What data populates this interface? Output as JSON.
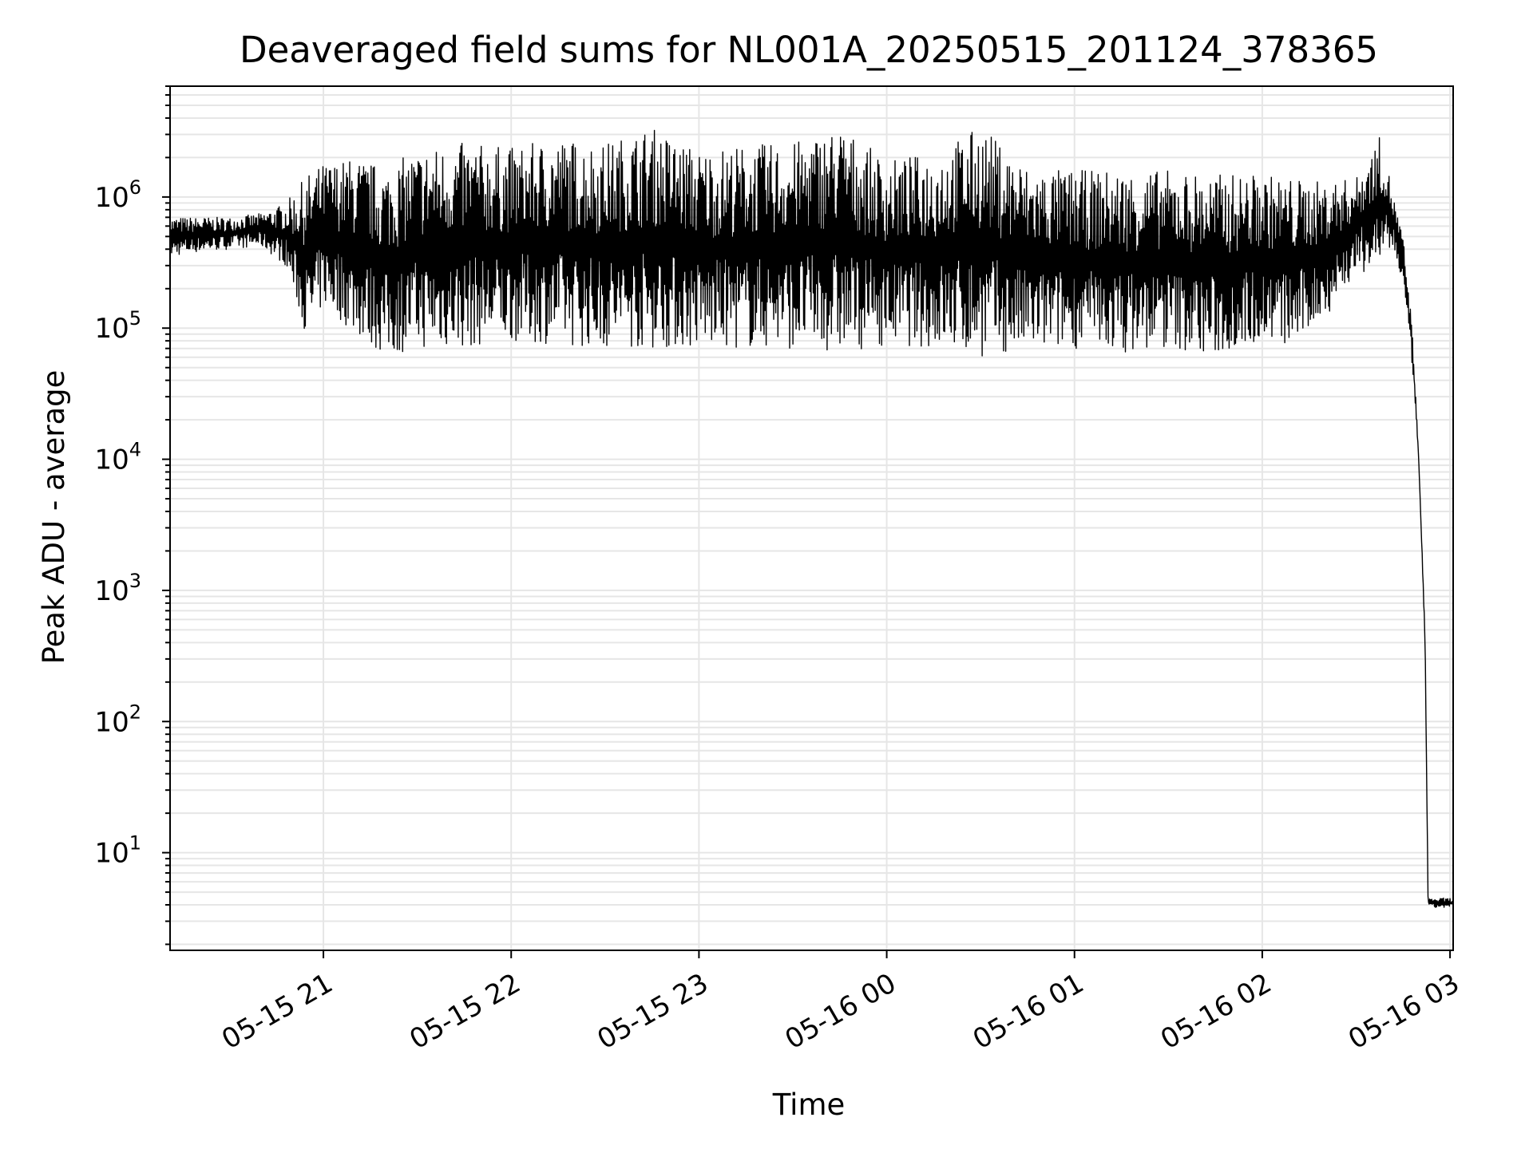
{
  "chart_data": {
    "type": "line",
    "title": "Deaveraged field sums for NL001A_20250515_201124_378365",
    "xlabel": "Time",
    "ylabel": "Peak ADU - average",
    "y_scale": "log",
    "ylim": [
      1.8,
      7000000
    ],
    "xlim": [
      "2025-05-15 20:11",
      "2025-05-16 03:01"
    ],
    "grid": true,
    "line_color": "#000000",
    "grid_color": "#e6e6e6",
    "x_ticks": [
      {
        "label": "05-15 21",
        "time": "2025-05-15 21:00"
      },
      {
        "label": "05-15 22",
        "time": "2025-05-15 22:00"
      },
      {
        "label": "05-15 23",
        "time": "2025-05-15 23:00"
      },
      {
        "label": "05-16 00",
        "time": "2025-05-16 00:00"
      },
      {
        "label": "05-16 01",
        "time": "2025-05-16 01:00"
      },
      {
        "label": "05-16 02",
        "time": "2025-05-16 02:00"
      },
      {
        "label": "05-16 03",
        "time": "2025-05-16 03:00"
      }
    ],
    "y_ticks": [
      {
        "base": "10",
        "exp": "1",
        "value": 10
      },
      {
        "base": "10",
        "exp": "2",
        "value": 100
      },
      {
        "base": "10",
        "exp": "3",
        "value": 1000
      },
      {
        "base": "10",
        "exp": "4",
        "value": 10000
      },
      {
        "base": "10",
        "exp": "5",
        "value": 100000
      },
      {
        "base": "10",
        "exp": "6",
        "value": 1000000
      }
    ],
    "series": [
      {
        "x": [
          "2025-05-15 20:11",
          "2025-05-15 20:20",
          "2025-05-15 20:30",
          "2025-05-15 20:40",
          "2025-05-15 20:48",
          "2025-05-15 20:55",
          "2025-05-15 21:00",
          "2025-05-15 21:10",
          "2025-05-15 21:20",
          "2025-05-15 21:30",
          "2025-05-15 21:45",
          "2025-05-15 22:00",
          "2025-05-15 22:15",
          "2025-05-15 22:30",
          "2025-05-15 22:45",
          "2025-05-15 23:00",
          "2025-05-15 23:15",
          "2025-05-15 23:30",
          "2025-05-15 23:45",
          "2025-05-16 00:00",
          "2025-05-16 00:15",
          "2025-05-16 00:30",
          "2025-05-16 00:45",
          "2025-05-16 01:00",
          "2025-05-16 01:15",
          "2025-05-16 01:30",
          "2025-05-16 01:45",
          "2025-05-16 02:00",
          "2025-05-16 02:10",
          "2025-05-16 02:20",
          "2025-05-16 02:30",
          "2025-05-16 02:38",
          "2025-05-16 02:42",
          "2025-05-16 02:45",
          "2025-05-16 02:48",
          "2025-05-16 02:50",
          "2025-05-16 02:52",
          "2025-05-16 02:53",
          "2025-05-16 03:01"
        ],
        "y_low": [
          350000,
          380000,
          400000,
          420000,
          300000,
          80000,
          150000,
          90000,
          60000,
          70000,
          70000,
          80000,
          75000,
          70000,
          70000,
          70000,
          70000,
          70000,
          65000,
          75000,
          70000,
          60000,
          65000,
          70000,
          65000,
          70000,
          60000,
          80000,
          70000,
          120000,
          250000,
          300000,
          400000,
          200000,
          50000,
          10000,
          400,
          3.8,
          3.8
        ],
        "y_high": [
          700000,
          700000,
          700000,
          750000,
          900000,
          1500000,
          1800000,
          2000000,
          1700000,
          2300000,
          2600000,
          2400000,
          2800000,
          2600000,
          3400000,
          2300000,
          2500000,
          2600000,
          3500000,
          1900000,
          2200000,
          3500000,
          1700000,
          1600000,
          1600000,
          1600000,
          1500000,
          1500000,
          1400000,
          1300000,
          1400000,
          3000000,
          1000000,
          500000,
          100000,
          10000,
          500,
          4.5,
          4.5
        ]
      }
    ]
  }
}
